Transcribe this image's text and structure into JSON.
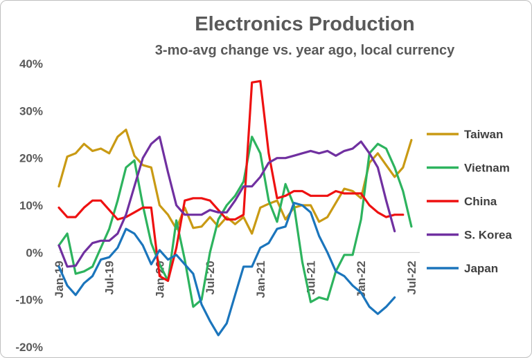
{
  "chart_data": {
    "type": "line",
    "title": "Electronics Production",
    "subtitle": "3-mo-avg change vs. year ago, local currency",
    "ylim": [
      -20,
      40
    ],
    "y_ticks": [
      "40%",
      "30%",
      "20%",
      "10%",
      "0%",
      "-10%",
      "-20%"
    ],
    "y_tick_values": [
      40,
      30,
      20,
      10,
      0,
      -10,
      -20
    ],
    "x_ticks": [
      "Jan-19",
      "Jul-19",
      "Jan-20",
      "Jul-20",
      "Jan-21",
      "Jul-21",
      "Jan-22",
      "Jul-22"
    ],
    "x_tick_index": [
      0,
      6,
      12,
      18,
      24,
      30,
      36,
      42
    ],
    "x": [
      "Jan-19",
      "Feb-19",
      "Mar-19",
      "Apr-19",
      "May-19",
      "Jun-19",
      "Jul-19",
      "Aug-19",
      "Sep-19",
      "Oct-19",
      "Nov-19",
      "Dec-19",
      "Jan-20",
      "Feb-20",
      "Mar-20",
      "Apr-20",
      "May-20",
      "Jun-20",
      "Jul-20",
      "Aug-20",
      "Sep-20",
      "Oct-20",
      "Nov-20",
      "Dec-20",
      "Jan-21",
      "Feb-21",
      "Mar-21",
      "Apr-21",
      "May-21",
      "Jun-21",
      "Jul-21",
      "Aug-21",
      "Sep-21",
      "Oct-21",
      "Nov-21",
      "Dec-21",
      "Jan-22",
      "Feb-22",
      "Mar-22",
      "Apr-22",
      "May-22",
      "Jun-22",
      "Jul-22",
      "Aug-22"
    ],
    "grid": false,
    "legend_position": "right",
    "series": [
      {
        "name": "Taiwan",
        "color": "#C99A14",
        "values": [
          14,
          20.3,
          21,
          23,
          21.5,
          22,
          21,
          24.5,
          26,
          20.5,
          18.5,
          18,
          10,
          8,
          5,
          9.5,
          5.2,
          5.5,
          7.5,
          5.5,
          7.5,
          6,
          7.5,
          4,
          9.5,
          10.3,
          11,
          7,
          9.5,
          10,
          10,
          6.5,
          7.5,
          10.5,
          13.5,
          13,
          11.5,
          19,
          21,
          18.5,
          16,
          18,
          23.8,
          null
        ]
      },
      {
        "name": "Vietnam",
        "color": "#2DB35E",
        "values": [
          1.5,
          4,
          -4.5,
          -4,
          -3,
          1,
          5,
          11,
          18,
          19.5,
          10,
          2,
          -2.5,
          -6,
          6.8,
          -1.5,
          -11.5,
          -10,
          0,
          7,
          10,
          12,
          15,
          24.5,
          21,
          11,
          6.5,
          14.5,
          10,
          -2,
          -10.5,
          -9.5,
          -10,
          -4,
          -0.5,
          -0.5,
          7,
          21,
          23,
          22,
          18,
          13,
          5.5,
          null
        ]
      },
      {
        "name": "China",
        "color": "#EE1111",
        "values": [
          9.5,
          7.5,
          7.5,
          9.5,
          11,
          11,
          9,
          7,
          7.5,
          8.5,
          9.5,
          9.5,
          -5,
          -6,
          1,
          11,
          11.5,
          11.5,
          11,
          9,
          7,
          7,
          8,
          36,
          36.3,
          21,
          11.5,
          12,
          13,
          13,
          12,
          12,
          12,
          13,
          12.5,
          12.5,
          12.5,
          10,
          8.5,
          7.5,
          8,
          8,
          null,
          null
        ]
      },
      {
        "name": "S. Korea",
        "color": "#7030A0",
        "values": [
          1.5,
          -3,
          -2.8,
          0,
          2,
          2.5,
          2.5,
          4,
          8,
          14,
          20,
          23,
          24.5,
          17,
          10,
          8,
          8,
          8,
          9,
          8.5,
          8.5,
          11,
          14,
          14,
          16,
          19,
          20,
          20,
          20.5,
          21,
          21.5,
          21,
          21.5,
          20.5,
          21.5,
          22,
          23.5,
          21,
          18,
          11,
          4.5,
          null,
          null,
          null
        ]
      },
      {
        "name": "Japan",
        "color": "#1B75BC",
        "values": [
          -3,
          -7,
          -9,
          -6.5,
          -5,
          -1.5,
          -1,
          1,
          5,
          4,
          1.5,
          -2.5,
          0.5,
          -1.5,
          -0.5,
          -2.5,
          -4.5,
          -11,
          -14.5,
          -17.5,
          -15,
          -9,
          -3,
          -3,
          1,
          2,
          5,
          5.5,
          10.5,
          10,
          8.5,
          3.5,
          0,
          -4,
          -5,
          -7,
          -8.5,
          -11.5,
          -13,
          -11.5,
          -9.5,
          null,
          null,
          null
        ]
      }
    ]
  }
}
